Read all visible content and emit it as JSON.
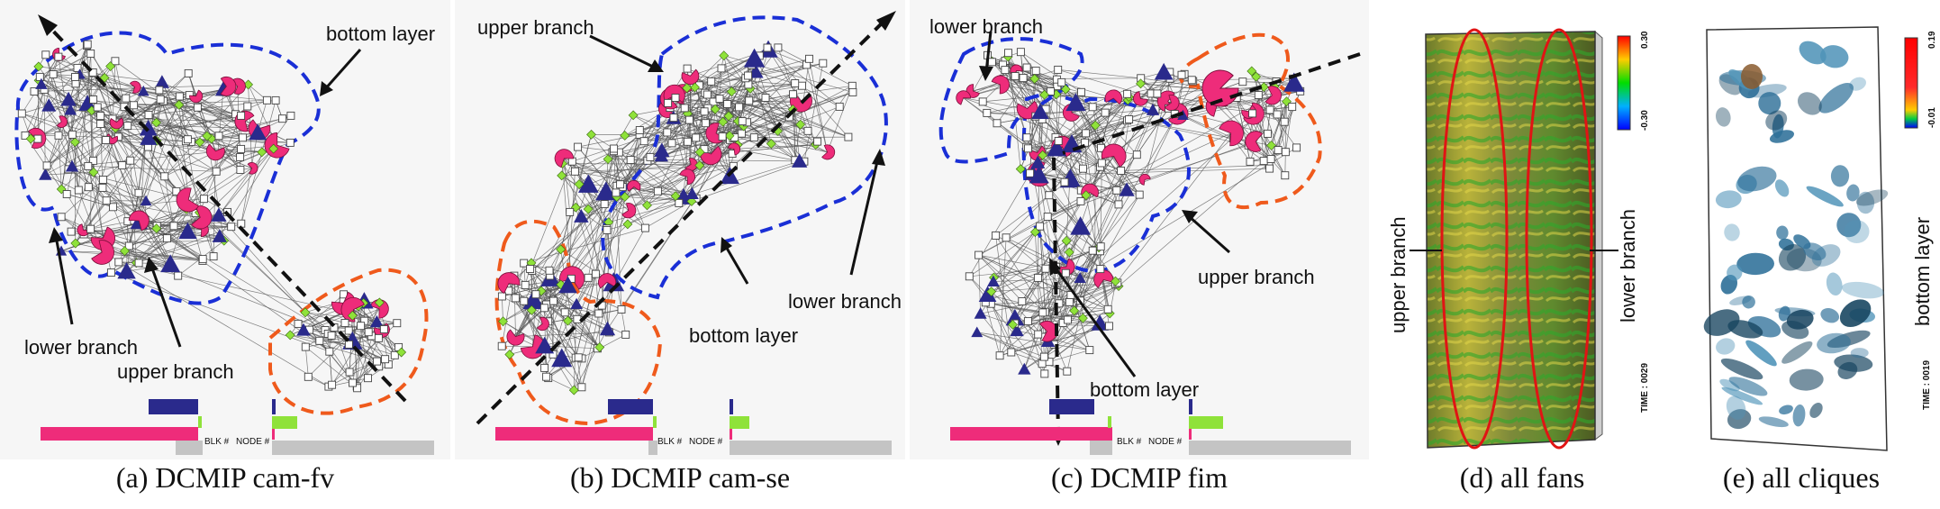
{
  "panels": [
    {
      "caption": "(a) DCMIP cam-fv",
      "annotations": [
        "bottom layer",
        "lower branch",
        "upper branch"
      ],
      "bar_labels": {
        "blk": "BLK #",
        "node": "NODE #"
      }
    },
    {
      "caption": "(b) DCMIP cam-se",
      "annotations": [
        "upper branch",
        "lower branch",
        "bottom layer"
      ],
      "bar_labels": {
        "blk": "BLK #",
        "node": "NODE #"
      }
    },
    {
      "caption": "(c) DCMIP fim",
      "annotations": [
        "lower branch",
        "upper branch",
        "bottom layer"
      ],
      "bar_labels": {
        "blk": "BLK #",
        "node": "NODE #"
      }
    },
    {
      "caption": "(d) all fans",
      "labels": [
        "upper branch",
        "lower branch"
      ],
      "time": "TIME : 0029",
      "colorbar": {
        "max": "0.30",
        "min": "-0.30"
      }
    },
    {
      "caption": "(e) all cliques",
      "labels": [
        "bottom layer"
      ],
      "time": "TIME : 0019",
      "colorbar": {
        "max": "0.19",
        "min": "-0.01"
      }
    }
  ],
  "colors": {
    "blue_outline": "#1a2fd6",
    "orange_outline": "#ef5a1c",
    "pink_node": "#ee2c7a",
    "navy_node": "#2a2a8c",
    "green_node": "#8fe23a",
    "red_ellipse": "#e01414",
    "gray_bar": "#c4c4c4"
  },
  "icons": [
    "square-node",
    "pie-node",
    "triangle-node",
    "diamond-node"
  ]
}
